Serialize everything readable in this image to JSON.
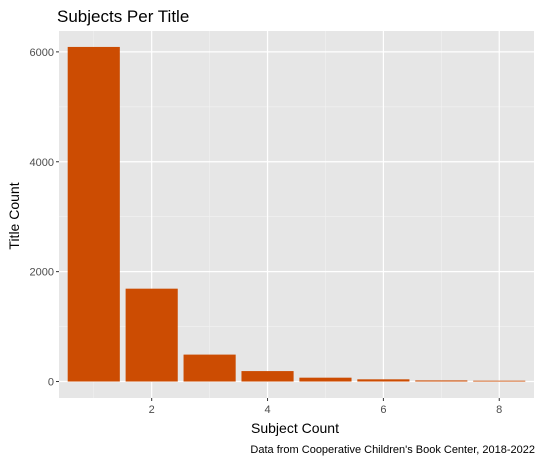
{
  "chart_data": {
    "type": "bar",
    "title": "Subjects Per Title",
    "xlabel": "Subject Count",
    "ylabel": "Title Count",
    "caption": "Data from Cooperative Children's Book Center, 2018-2022",
    "x": [
      1,
      2,
      3,
      4,
      5,
      6,
      7,
      8
    ],
    "values": [
      6090,
      1690,
      490,
      190,
      70,
      40,
      20,
      15
    ],
    "xlim": [
      0.4,
      8.6
    ],
    "ylim": [
      -300,
      6380
    ],
    "x_ticks": [
      2,
      4,
      6,
      8
    ],
    "y_ticks": [
      0,
      2000,
      4000,
      6000
    ],
    "bar_color": "#cc4c02",
    "panel_color": "#e6e6e6",
    "grid": true,
    "legend": "none"
  }
}
